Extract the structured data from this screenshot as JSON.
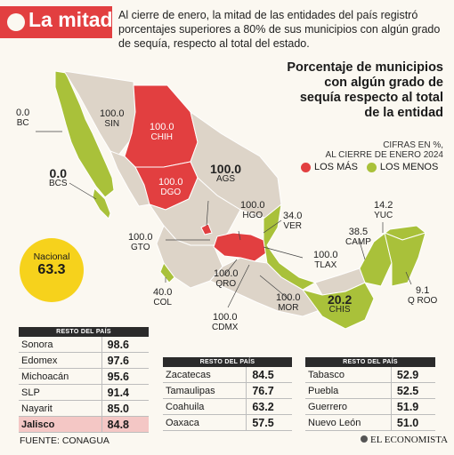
{
  "header": {
    "title": "La mitad",
    "intro": "Al cierre de enero, la mitad de las entidades del país registró porcentajes superiores a 80% de sus municipios con algún grado de sequía, respecto al total del estado."
  },
  "legend": {
    "title": "Porcentaje de municipios con algún grado de sequía respecto al total de la entidad",
    "units": "CIFRAS EN %,",
    "date": "AL CIERRE DE ENERO 2024",
    "mas_label": "LOS MÁS",
    "menos_label": "LOS MENOS",
    "mas_color": "#e23f40",
    "menos_color": "#a9c13a",
    "neutral_color": "#ddd4c8"
  },
  "map_labels": {
    "bc": {
      "value": "0.0",
      "state": "BC"
    },
    "bcs": {
      "value": "0.0",
      "state": "BCS"
    },
    "sin": {
      "value": "100.0",
      "state": "SIN"
    },
    "chih": {
      "value": "100.0",
      "state": "CHIH"
    },
    "dgo": {
      "value": "100.0",
      "state": "DGO"
    },
    "ags": {
      "value": "100.0",
      "state": "AGS"
    },
    "hgo": {
      "value": "100.0",
      "state": "HGO"
    },
    "ver": {
      "value": "34.0",
      "state": "VER"
    },
    "yuc": {
      "value": "14.2",
      "state": "YUC"
    },
    "camp": {
      "value": "38.5",
      "state": "CAMP"
    },
    "gto": {
      "value": "100.0",
      "state": "GTO"
    },
    "tlax": {
      "value": "100.0",
      "state": "TLAX"
    },
    "qroo": {
      "value": "9.1",
      "state": "Q ROO"
    },
    "col": {
      "value": "40.0",
      "state": "COL"
    },
    "qro": {
      "value": "100.0",
      "state": "QRO"
    },
    "mor": {
      "value": "100.0",
      "state": "MOR"
    },
    "chis": {
      "value": "20.2",
      "state": "CHIS"
    },
    "cdmx": {
      "value": "100.0",
      "state": "CDMX"
    }
  },
  "nacional": {
    "label": "Nacional",
    "value": "63.3"
  },
  "tables": [
    {
      "header": "RESTO DEL PAÍS",
      "rows": [
        {
          "state": "Sonora",
          "value": "98.6"
        },
        {
          "state": "Edomex",
          "value": "97.6"
        },
        {
          "state": "Michoacán",
          "value": "95.6"
        },
        {
          "state": "SLP",
          "value": "91.4"
        },
        {
          "state": "Nayarit",
          "value": "85.0"
        },
        {
          "state": "Jalisco",
          "value": "84.8"
        }
      ]
    },
    {
      "header": "RESTO DEL PAÍS",
      "rows": [
        {
          "state": "Zacatecas",
          "value": "84.5"
        },
        {
          "state": "Tamaulipas",
          "value": "76.7"
        },
        {
          "state": "Coahuila",
          "value": "63.2"
        },
        {
          "state": "Oaxaca",
          "value": "57.5"
        }
      ]
    },
    {
      "header": "RESTO DEL PAÍS",
      "rows": [
        {
          "state": "Tabasco",
          "value": "52.9"
        },
        {
          "state": "Puebla",
          "value": "52.5"
        },
        {
          "state": "Guerrero",
          "value": "51.9"
        },
        {
          "state": "Nuevo León",
          "value": "51.0"
        }
      ]
    }
  ],
  "footer": {
    "source": "FUENTE: CONAGUA",
    "brand": "EL ECONOMISTA"
  }
}
